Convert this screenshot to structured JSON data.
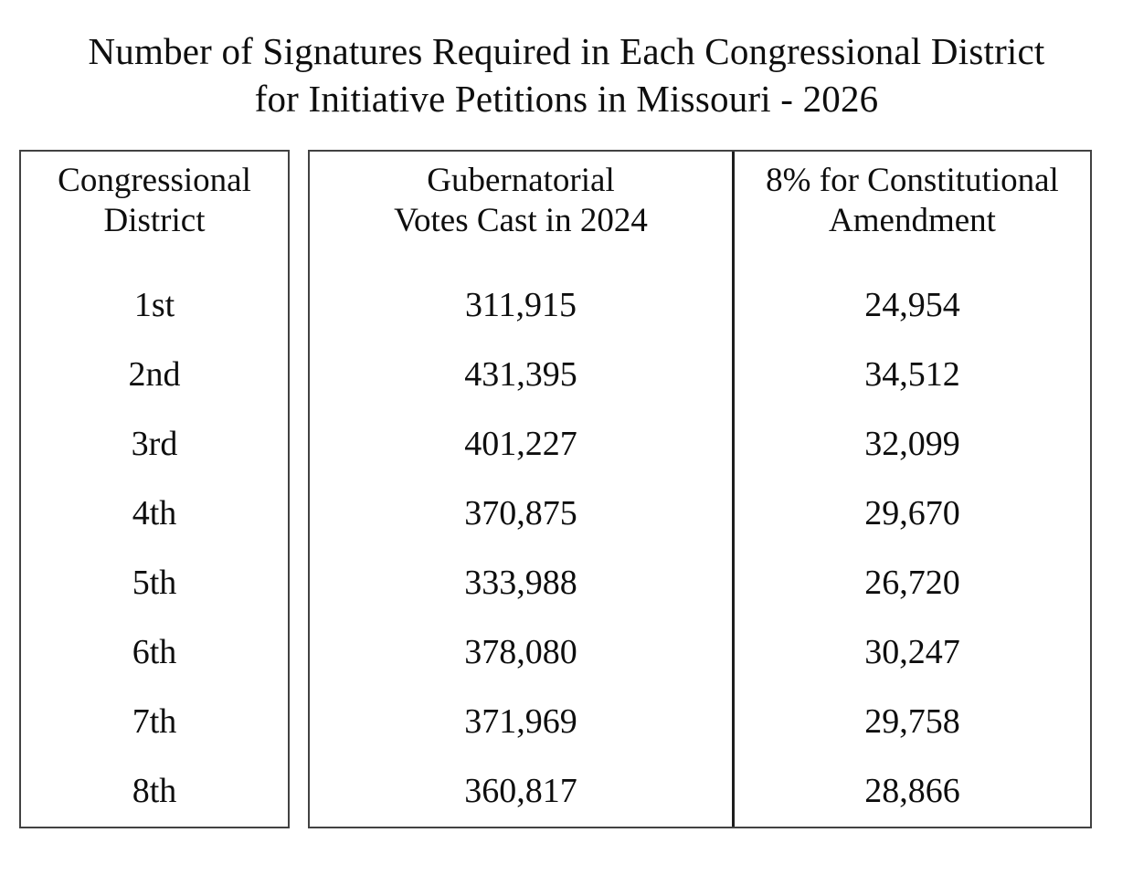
{
  "title": "Number of Signatures Required in Each Congressional District\nfor Initiative Petitions in Missouri - 2026",
  "colors": {
    "background": "#ffffff",
    "text": "#0e0e0e",
    "box_border": "#424242",
    "divider": "#1e1e1e"
  },
  "table": {
    "columns": [
      {
        "header": "Congressional\nDistrict"
      },
      {
        "header": "Gubernatorial\nVotes Cast in 2024"
      },
      {
        "header": "8% for Constitutional\nAmendment"
      }
    ],
    "rows": [
      {
        "district": "1st",
        "votes": "311,915",
        "signatures": "24,954"
      },
      {
        "district": "2nd",
        "votes": "431,395",
        "signatures": "34,512"
      },
      {
        "district": "3rd",
        "votes": "401,227",
        "signatures": "32,099"
      },
      {
        "district": "4th",
        "votes": "370,875",
        "signatures": "29,670"
      },
      {
        "district": "5th",
        "votes": "333,988",
        "signatures": "26,720"
      },
      {
        "district": "6th",
        "votes": "378,080",
        "signatures": "30,247"
      },
      {
        "district": "7th",
        "votes": "371,969",
        "signatures": "29,758"
      },
      {
        "district": "8th",
        "votes": "360,817",
        "signatures": "28,866"
      }
    ]
  },
  "chart_data": {
    "type": "table",
    "title": "Number of Signatures Required in Each Congressional District for Initiative Petitions in Missouri - 2026",
    "columns": [
      "Congressional District",
      "Gubernatorial Votes Cast in 2024",
      "8% for Constitutional Amendment"
    ],
    "rows": [
      [
        "1st",
        311915,
        24954
      ],
      [
        "2nd",
        431395,
        34512
      ],
      [
        "3rd",
        401227,
        32099
      ],
      [
        "4th",
        370875,
        29670
      ],
      [
        "5th",
        333988,
        26720
      ],
      [
        "6th",
        378080,
        30247
      ],
      [
        "7th",
        371969,
        29758
      ],
      [
        "8th",
        360817,
        28866
      ]
    ]
  }
}
